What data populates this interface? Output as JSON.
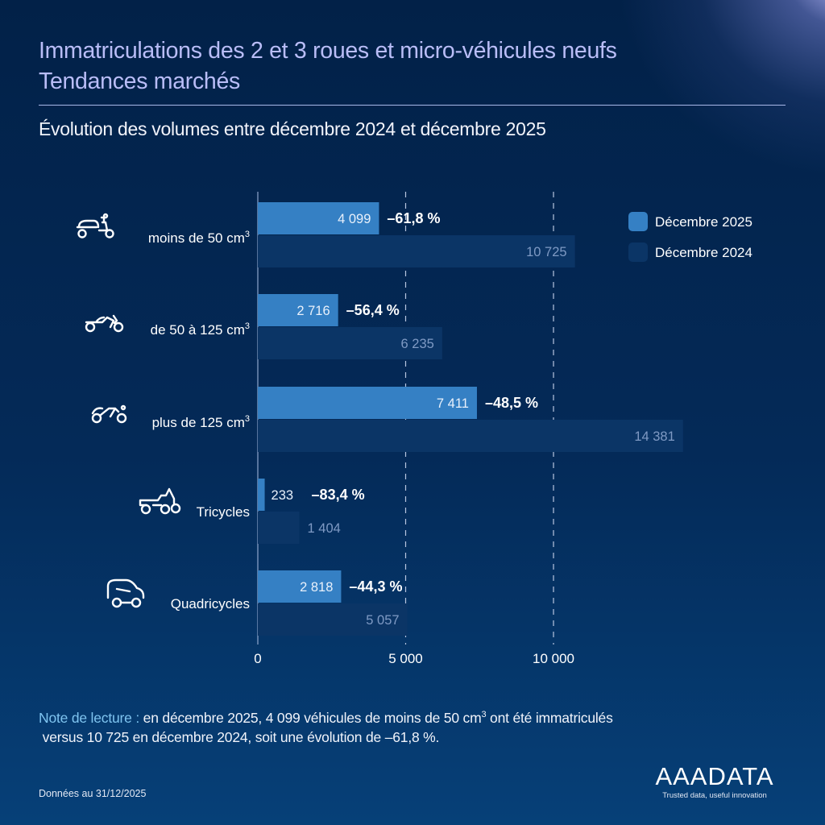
{
  "header": {
    "title_line1": "Immatriculations des 2 et 3 roues et micro-véhicules neufs",
    "title_line2": "Tendances marchés",
    "subtitle": "Évolution des volumes entre décembre 2024 et décembre 2025"
  },
  "colors": {
    "series_2025": "#3580c4",
    "series_2024": "#0b3566",
    "background": "#022148",
    "title": "#b9bdf7",
    "note_label": "#7fc4f0"
  },
  "chart_data": {
    "type": "bar",
    "orientation": "horizontal",
    "title": "Évolution des volumes entre décembre 2024 et décembre 2025",
    "xlabel": "",
    "ylabel": "",
    "xlim": [
      0,
      15000
    ],
    "x_ticks": [
      0,
      5000,
      10000
    ],
    "x_tick_labels": [
      "0",
      "5 000",
      "10 000"
    ],
    "grid": "dashed vertical at 5 000 and 10 000",
    "legend_position": "top-right",
    "categories": [
      {
        "label": "moins de 50 cm",
        "sup": "3",
        "icon": "scooter-icon"
      },
      {
        "label": "de 50 à 125 cm",
        "sup": "3",
        "icon": "motorcycle-icon"
      },
      {
        "label": "plus de 125 cm",
        "sup": "3",
        "icon": "sport-motorcycle-icon"
      },
      {
        "label": "Tricycles",
        "sup": "",
        "icon": "tricycle-icon"
      },
      {
        "label": "Quadricycles",
        "sup": "",
        "icon": "microcar-icon"
      }
    ],
    "series": [
      {
        "name": "Décembre 2025",
        "values": [
          4099,
          2716,
          7411,
          233,
          2818
        ],
        "labels": [
          "4 099",
          "2 716",
          "7 411",
          "233",
          "2 818"
        ]
      },
      {
        "name": "Décembre 2024",
        "values": [
          10725,
          6235,
          14381,
          1404,
          5057
        ],
        "labels": [
          "10 725",
          "6 235",
          "14 381",
          "1 404",
          "5 057"
        ]
      }
    ],
    "evolution_pct": [
      -61.8,
      -56.4,
      -48.5,
      -83.4,
      -44.3
    ],
    "evolution_labels": [
      "–61,8 %",
      "–56,4 %",
      "–48,5 %",
      "–83,4 %",
      "–44,3 %"
    ]
  },
  "note": {
    "label": "Note de lecture :",
    "text_before_sup": " en décembre 2025, 4 099 véhicules de moins de 50 cm",
    "sup": "3",
    "text_after_sup": " ont été immatriculés",
    "line2": "versus 10 725 en décembre 2024, soit une évolution de –61,8 %."
  },
  "footer": {
    "date": "Données au 31/12/2025",
    "logo_text": "AAADATA",
    "logo_tagline": "Trusted data, useful innovation"
  }
}
